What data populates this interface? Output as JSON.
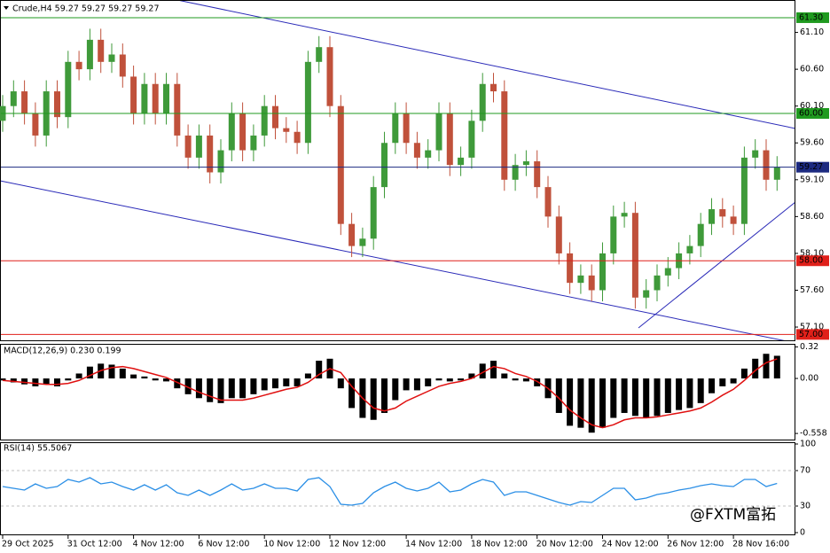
{
  "chart_data": [
    {
      "type": "candlestick",
      "title": "Crude,H4  59.27 59.27 59.27 59.27",
      "categories": [
        "29 Oct 2025",
        null,
        null,
        null,
        null,
        null,
        "31 Oct 12:00",
        null,
        null,
        null,
        null,
        null,
        "4 Nov 12:00",
        null,
        null,
        null,
        null,
        null,
        "6 Nov 12:00",
        null,
        null,
        null,
        null,
        null,
        "10 Nov 12:00",
        null,
        null,
        null,
        null,
        null,
        "12 Nov 12:00",
        null,
        null,
        null,
        null,
        null,
        null,
        "14 Nov 12:00",
        null,
        null,
        null,
        null,
        null,
        "18 Nov 12:00",
        null,
        null,
        null,
        null,
        null,
        "20 Nov 12:00",
        null,
        null,
        null,
        null,
        null,
        "24 Nov 12:00",
        null,
        null,
        null,
        null,
        null,
        "26 Nov 12:00",
        null,
        null,
        null,
        null,
        null,
        "28 Nov 16:00",
        null,
        null,
        null,
        null
      ],
      "open": [
        59.9,
        60.1,
        60.3,
        60.0,
        59.7,
        60.3,
        59.95,
        60.7,
        60.6,
        61.0,
        60.7,
        60.8,
        60.5,
        60.0,
        60.4,
        60.0,
        60.4,
        59.7,
        59.4,
        59.7,
        59.2,
        59.5,
        60.0,
        59.5,
        59.7,
        60.1,
        59.8,
        59.75,
        59.6,
        60.7,
        60.9,
        60.1,
        58.5,
        58.2,
        58.3,
        59.0,
        59.6,
        60.0,
        59.6,
        59.4,
        59.5,
        60.0,
        59.3,
        59.4,
        59.9,
        60.4,
        60.3,
        59.1,
        59.3,
        59.35,
        59.0,
        58.6,
        58.1,
        57.7,
        57.8,
        57.6,
        58.1,
        58.6,
        58.65,
        57.5,
        57.6,
        57.8,
        57.9,
        58.1,
        58.2,
        58.5,
        58.7,
        58.6,
        58.5,
        59.4,
        59.5,
        59.1
      ],
      "high": [
        60.25,
        60.45,
        60.45,
        60.15,
        60.45,
        60.45,
        60.85,
        60.85,
        61.15,
        61.15,
        60.95,
        60.95,
        60.65,
        60.55,
        60.55,
        60.55,
        60.55,
        59.85,
        59.85,
        59.85,
        59.65,
        60.15,
        60.15,
        59.85,
        60.25,
        60.25,
        59.95,
        59.9,
        60.85,
        61.05,
        61.05,
        60.25,
        58.65,
        58.45,
        59.15,
        59.75,
        60.15,
        60.15,
        59.75,
        59.65,
        60.15,
        60.15,
        59.55,
        60.05,
        60.55,
        60.55,
        60.45,
        59.45,
        59.5,
        59.5,
        59.15,
        58.75,
        58.25,
        57.95,
        57.95,
        58.25,
        58.75,
        58.8,
        58.8,
        57.75,
        57.95,
        58.05,
        58.25,
        58.35,
        58.65,
        58.85,
        58.85,
        58.75,
        59.55,
        59.65,
        59.65,
        59.42
      ],
      "low": [
        59.75,
        59.95,
        59.85,
        59.55,
        59.55,
        59.8,
        59.8,
        60.45,
        60.45,
        60.55,
        60.55,
        60.35,
        59.85,
        59.85,
        59.85,
        59.85,
        59.55,
        59.25,
        59.25,
        59.05,
        59.05,
        59.35,
        59.35,
        59.35,
        59.55,
        59.65,
        59.6,
        59.45,
        59.45,
        60.55,
        59.95,
        58.35,
        58.05,
        58.05,
        58.15,
        58.85,
        59.45,
        59.45,
        59.25,
        59.25,
        59.35,
        59.15,
        59.15,
        59.25,
        59.75,
        60.15,
        58.95,
        58.95,
        59.15,
        58.85,
        58.45,
        57.95,
        57.55,
        57.55,
        57.45,
        57.45,
        57.95,
        58.45,
        57.35,
        57.35,
        57.45,
        57.65,
        57.75,
        57.95,
        58.05,
        58.35,
        58.45,
        58.35,
        58.35,
        59.25,
        58.95,
        58.95
      ],
      "close": [
        60.1,
        60.3,
        60.0,
        59.7,
        60.3,
        59.95,
        60.7,
        60.6,
        61.0,
        60.7,
        60.8,
        60.5,
        60.0,
        60.4,
        60.0,
        60.4,
        59.7,
        59.4,
        59.7,
        59.2,
        59.5,
        60.0,
        59.5,
        59.7,
        60.1,
        59.8,
        59.75,
        59.6,
        60.7,
        60.9,
        60.1,
        58.5,
        58.2,
        58.3,
        59.0,
        59.6,
        60.0,
        59.6,
        59.4,
        59.5,
        60.0,
        59.3,
        59.4,
        59.9,
        60.4,
        60.3,
        59.1,
        59.3,
        59.35,
        59.0,
        58.6,
        58.1,
        57.7,
        57.8,
        57.6,
        58.1,
        58.6,
        58.65,
        57.5,
        57.6,
        57.8,
        57.9,
        58.1,
        58.2,
        58.5,
        58.7,
        58.6,
        58.5,
        59.4,
        59.5,
        59.1,
        59.27
      ],
      "up_color": "#3f9a3a",
      "down_color": "#c0513b",
      "ylim": [
        56.92,
        61.54
      ],
      "yticks": [
        {
          "value": 61.1,
          "label": "61.10"
        },
        {
          "value": 60.6,
          "label": "60.60"
        },
        {
          "value": 60.1,
          "label": "60.10"
        },
        {
          "value": 59.6,
          "label": "59.60"
        },
        {
          "value": 59.1,
          "label": "59.10"
        },
        {
          "value": 58.6,
          "label": "58.60"
        },
        {
          "value": 58.1,
          "label": "58.10"
        },
        {
          "value": 57.6,
          "label": "57.60"
        },
        {
          "value": 57.1,
          "label": "57.10"
        }
      ],
      "levels": [
        {
          "value": 61.3,
          "label": "61.30",
          "color": "#1f9a1f"
        },
        {
          "value": 60.0,
          "label": "60.00",
          "color": "#1f9a1f"
        },
        {
          "value": 59.27,
          "label": "59.27",
          "color": "#1c2a80"
        },
        {
          "value": 58.0,
          "label": "58.00",
          "color": "#e0201a"
        },
        {
          "value": 57.0,
          "label": "57.00",
          "color": "#e0201a"
        }
      ]
    },
    {
      "type": "macd",
      "title": "MACD(12,26,9) 0.230 0.199",
      "series": [
        {
          "color": "#000000",
          "values": [
            -0.02,
            -0.04,
            -0.06,
            -0.08,
            -0.06,
            -0.08,
            -0.02,
            0.05,
            0.12,
            0.15,
            0.14,
            0.1,
            0.04,
            0.02,
            -0.02,
            -0.03,
            -0.1,
            -0.16,
            -0.2,
            -0.24,
            -0.25,
            -0.2,
            -0.2,
            -0.16,
            -0.12,
            -0.1,
            -0.08,
            -0.08,
            0.05,
            0.18,
            0.2,
            -0.1,
            -0.3,
            -0.4,
            -0.42,
            -0.35,
            -0.22,
            -0.12,
            -0.12,
            -0.08,
            -0.02,
            -0.03,
            -0.02,
            0.05,
            0.15,
            0.18,
            0.05,
            -0.02,
            -0.03,
            -0.08,
            -0.2,
            -0.35,
            -0.48,
            -0.5,
            -0.55,
            -0.5,
            -0.4,
            -0.35,
            -0.38,
            -0.4,
            -0.38,
            -0.35,
            -0.32,
            -0.3,
            -0.25,
            -0.15,
            -0.08,
            -0.05,
            0.1,
            0.2,
            0.25,
            0.23
          ]
        },
        {
          "color": "#e01010",
          "values": [
            -0.02,
            -0.03,
            -0.04,
            -0.05,
            -0.06,
            -0.06,
            -0.05,
            -0.02,
            0.03,
            0.08,
            0.11,
            0.12,
            0.1,
            0.07,
            0.04,
            0.01,
            -0.04,
            -0.09,
            -0.14,
            -0.18,
            -0.22,
            -0.22,
            -0.22,
            -0.2,
            -0.17,
            -0.14,
            -0.11,
            -0.09,
            -0.04,
            0.04,
            0.1,
            0.06,
            -0.08,
            -0.2,
            -0.3,
            -0.33,
            -0.3,
            -0.23,
            -0.18,
            -0.13,
            -0.08,
            -0.05,
            -0.03,
            0.0,
            0.06,
            0.12,
            0.1,
            0.05,
            0.02,
            -0.03,
            -0.1,
            -0.2,
            -0.32,
            -0.4,
            -0.47,
            -0.5,
            -0.47,
            -0.42,
            -0.4,
            -0.4,
            -0.39,
            -0.37,
            -0.35,
            -0.33,
            -0.3,
            -0.24,
            -0.17,
            -0.11,
            -0.02,
            0.08,
            0.16,
            0.199
          ]
        }
      ],
      "ylim": [
        -0.62,
        0.351
      ],
      "yticks": [
        0.32,
        {
          "value": 0,
          "label": "0.00"
        },
        -0.558
      ]
    },
    {
      "type": "rsi",
      "title": "RSI(14) 55.5067",
      "values": [
        52,
        50,
        48,
        55,
        50,
        52,
        60,
        57,
        62,
        55,
        57,
        52,
        48,
        54,
        48,
        54,
        45,
        42,
        48,
        42,
        48,
        55,
        48,
        50,
        55,
        50,
        50,
        47,
        60,
        62,
        52,
        32,
        31,
        33,
        45,
        52,
        57,
        50,
        47,
        50,
        57,
        46,
        48,
        55,
        60,
        57,
        42,
        46,
        46,
        42,
        38,
        34,
        31,
        35,
        34,
        42,
        50,
        50,
        37,
        39,
        43,
        45,
        48,
        50,
        53,
        55,
        53,
        52,
        60,
        60,
        52,
        55.5067
      ],
      "color": "#2b8fe6",
      "ylim": [
        0,
        100
      ],
      "yticks": [
        100,
        70,
        30,
        0
      ],
      "levels": [
        70,
        30
      ]
    }
  ],
  "watermark": "@FXTM富拓"
}
